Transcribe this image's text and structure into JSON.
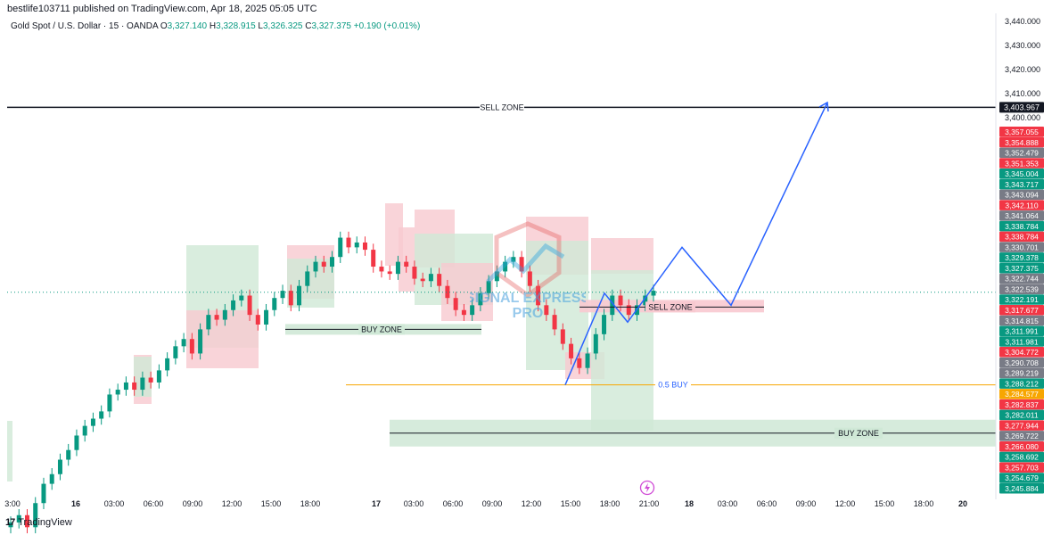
{
  "header": {
    "publisher_line": "bestlife103711 published on TradingView.com, Apr 18, 2025 05:05 UTC",
    "symbol": "Gold Spot / U.S. Dollar · 15 · OANDA",
    "open_label": "O",
    "open_value": "3,327.140",
    "high_label": "H",
    "high_value": "3,328.915",
    "low_label": "L",
    "low_value": "3,326.325",
    "close_label": "C",
    "close_value": "3,327.375",
    "change": "+0.190 (+0.01%)"
  },
  "footer": {
    "brand_mark": "17",
    "brand_name": "TradingView"
  },
  "watermark": {
    "line1": "SIGNAL EXPRESS",
    "line2": "PRO"
  },
  "colors": {
    "up": "#089981",
    "down": "#f23645",
    "neutral": "#787b86",
    "projection": "#2962ff",
    "fib": "#f7a600",
    "buy_zone_fill": "#cfe8d6",
    "sell_zone_fill": "#f8c9d0"
  },
  "chart_data": {
    "type": "candlestick",
    "title": "Gold Spot / U.S. Dollar · 15 · OANDA",
    "x_ticks": [
      "3:00",
      "16",
      "03:00",
      "06:00",
      "09:00",
      "12:00",
      "15:00",
      "18:00",
      "17",
      "03:00",
      "06:00",
      "09:00",
      "12:00",
      "15:00",
      "18:00",
      "21:00",
      "18",
      "03:00",
      "06:00",
      "09:00",
      "12:00",
      "15:00",
      "18:00",
      "20"
    ],
    "y_ticks": [
      "3,440.000",
      "3,430.000",
      "3,420.000",
      "3,410.000",
      "3,400.000"
    ],
    "ylim": [
      3240,
      3443
    ],
    "price_labels": [
      {
        "value": "3,403.967",
        "color": "#131722"
      },
      {
        "value": "3,357.055",
        "color": "#f23645"
      },
      {
        "value": "3,354.888",
        "color": "#f23645"
      },
      {
        "value": "3,352.479",
        "color": "#787b86"
      },
      {
        "value": "3,351.353",
        "color": "#f23645"
      },
      {
        "value": "3,345.004",
        "color": "#089981"
      },
      {
        "value": "3,343.717",
        "color": "#089981"
      },
      {
        "value": "3,343.094",
        "color": "#787b86"
      },
      {
        "value": "3,342.110",
        "color": "#f23645"
      },
      {
        "value": "3,341.064",
        "color": "#787b86"
      },
      {
        "value": "3,338.784",
        "color": "#089981"
      },
      {
        "value": "3,338.784",
        "color": "#f23645"
      },
      {
        "value": "3,330.701",
        "color": "#787b86"
      },
      {
        "value": "3,329.378",
        "color": "#089981"
      },
      {
        "value": "3,327.375",
        "color": "#089981"
      },
      {
        "value": "3,322.744",
        "color": "#787b86"
      },
      {
        "value": "3,322.539",
        "color": "#787b86"
      },
      {
        "value": "3,322.191",
        "color": "#089981"
      },
      {
        "value": "3,317.677",
        "color": "#f23645"
      },
      {
        "value": "3,314.815",
        "color": "#787b86"
      },
      {
        "value": "3,311.991",
        "color": "#089981"
      },
      {
        "value": "3,311.981",
        "color": "#089981"
      },
      {
        "value": "3,304.772",
        "color": "#f23645"
      },
      {
        "value": "3,290.708",
        "color": "#787b86"
      },
      {
        "value": "3,289.219",
        "color": "#787b86"
      },
      {
        "value": "3,288.212",
        "color": "#089981"
      },
      {
        "value": "3,284.577",
        "color": "#f7a600"
      },
      {
        "value": "3,282.837",
        "color": "#f23645"
      },
      {
        "value": "3,282.011",
        "color": "#089981"
      },
      {
        "value": "3,277.944",
        "color": "#f23645"
      },
      {
        "value": "3,269.722",
        "color": "#787b86"
      },
      {
        "value": "3,266.080",
        "color": "#f23645"
      },
      {
        "value": "3,258.692",
        "color": "#089981"
      },
      {
        "value": "3,257.703",
        "color": "#f23645"
      },
      {
        "value": "3,254.679",
        "color": "#089981"
      },
      {
        "value": "3,245.884",
        "color": "#089981"
      }
    ],
    "series": [
      {
        "values": [
          3232,
          3235,
          3230,
          3240,
          3248,
          3252,
          3258,
          3262,
          3268,
          3272,
          3275,
          3278,
          3285,
          3287,
          3290,
          3287,
          3292,
          3290,
          3295,
          3300,
          3305,
          3308,
          3302,
          3312,
          3318,
          3316,
          3320,
          3324,
          3326,
          3318,
          3314,
          3320,
          3325,
          3328,
          3322,
          3330,
          3336,
          3340,
          3338,
          3342,
          3350,
          3346,
          3348,
          3345,
          3338,
          3336,
          3335,
          3340,
          3338,
          3333,
          3332,
          3335,
          3330,
          3325,
          3320,
          3318,
          3322,
          3327,
          3332,
          3336,
          3340,
          3342,
          3336,
          3330,
          3322,
          3318,
          3312,
          3306,
          3300,
          3296,
          3302,
          3310,
          3318,
          3326,
          3322,
          3318,
          3322,
          3326,
          3328
        ]
      }
    ],
    "annotations": {
      "sell_zone_top": "SELL ZONE",
      "sell_zone_mid": "SELL ZONE",
      "buy_zone_mid": "BUY ZONE",
      "buy_zone_low": "BUY ZONE",
      "fib_label": "0.5 BUY"
    },
    "levels": {
      "sell_zone_top": 3404,
      "sell_zone_mid": 3322,
      "buy_zone_mid": 3312,
      "buy_zone_low": 3269,
      "fib_half": 3289
    },
    "projection_path": [
      3289,
      3327,
      3315,
      3346,
      3322,
      3406
    ]
  }
}
